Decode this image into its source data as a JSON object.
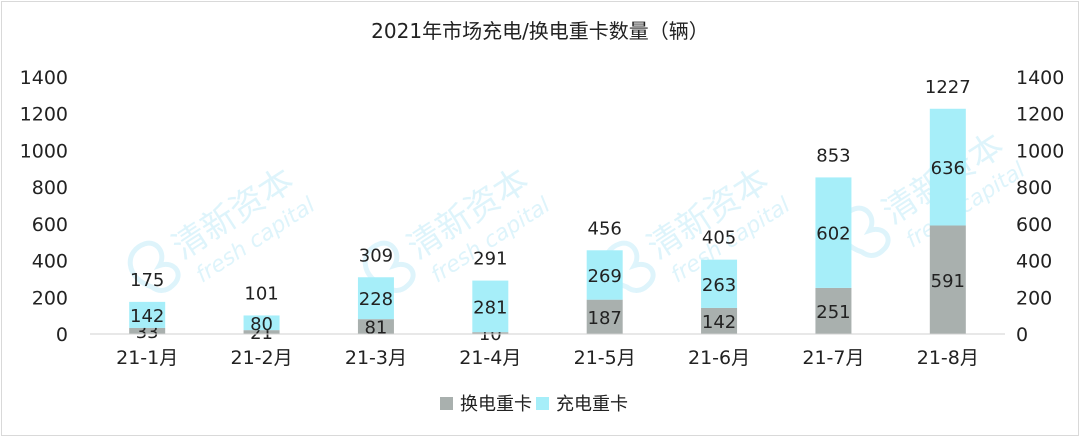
{
  "chart_data": {
    "type": "bar",
    "stacked": true,
    "title": "2021年市场充电/换电重卡数量（辆）",
    "categories": [
      "21-1月",
      "21-2月",
      "21-3月",
      "21-4月",
      "21-5月",
      "21-6月",
      "21-7月",
      "21-8月"
    ],
    "series": [
      {
        "name": "换电重卡",
        "values": [
          33,
          21,
          81,
          10,
          187,
          142,
          251,
          591
        ],
        "color": "#a9b0ae"
      },
      {
        "name": "充电重卡",
        "values": [
          142,
          80,
          228,
          281,
          269,
          263,
          602,
          636
        ],
        "color": "#a6eef9"
      }
    ],
    "totals": [
      175,
      101,
      309,
      291,
      456,
      405,
      853,
      1227
    ],
    "ylim": [
      0,
      1400
    ],
    "yticks": [
      0,
      200,
      400,
      600,
      800,
      1000,
      1200,
      1400
    ],
    "secondary_axis": true,
    "grid": false,
    "legend_position": "bottom"
  },
  "watermark": {
    "text_cn": "清新资本",
    "text_en": "fresh capital",
    "color": "#d9f3fb"
  }
}
